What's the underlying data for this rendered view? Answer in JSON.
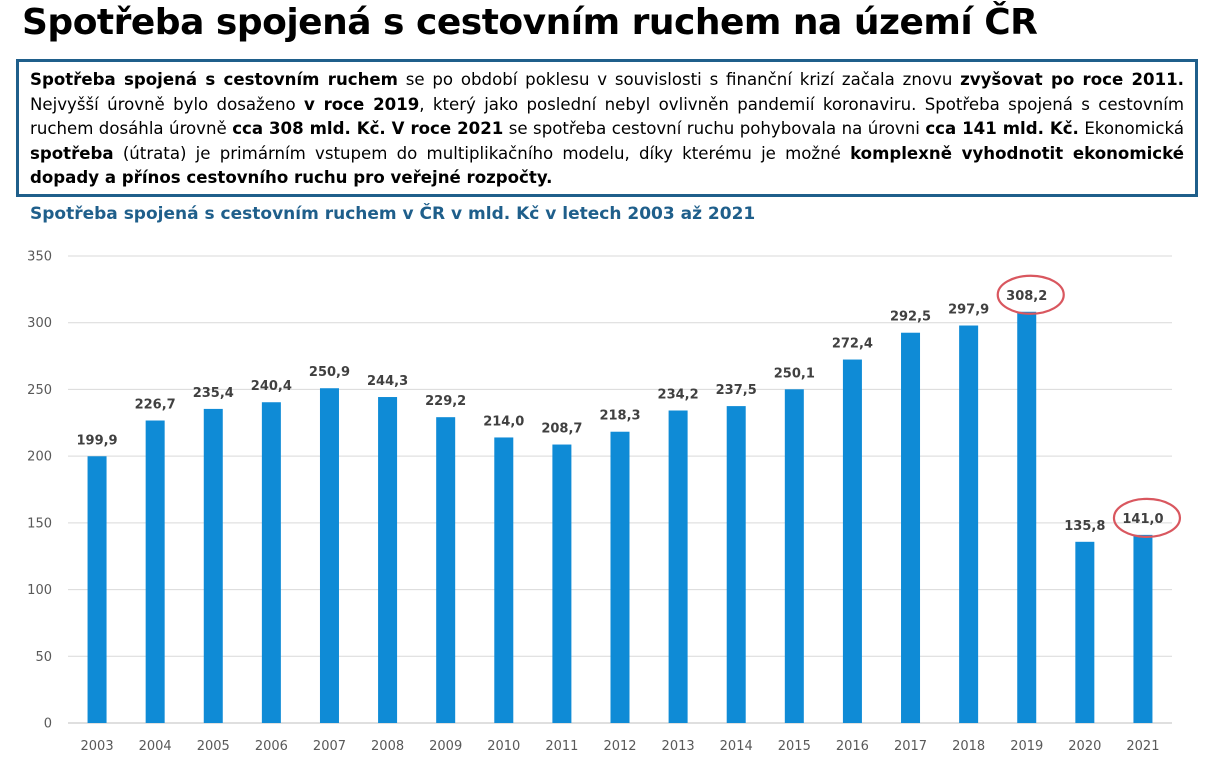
{
  "page_title": "Spotřeba spojená s cestovním ruchem na území ČR",
  "summary": [
    {
      "text": "Spotřeba spojená s cestovním ruchem",
      "bold": true
    },
    {
      "text": " se po období poklesu v souvislosti s finanční krizí začala znovu ",
      "bold": false
    },
    {
      "text": "zvyšovat po roce 2011.",
      "bold": true
    },
    {
      "text": " Nejvyšší úrovně bylo dosaženo ",
      "bold": false
    },
    {
      "text": "v roce 2019",
      "bold": true
    },
    {
      "text": ", který jako poslední nebyl ovlivněn pandemií koronaviru. Spotřeba spojená s cestovním ruchem dosáhla úrovně ",
      "bold": false
    },
    {
      "text": "cca 308 mld. Kč. V roce 2021",
      "bold": true
    },
    {
      "text": " se spotřeba cestovní ruchu pohybovala na úrovni ",
      "bold": false
    },
    {
      "text": "cca 141 mld. Kč.",
      "bold": true
    },
    {
      "text": " Ekonomická ",
      "bold": false
    },
    {
      "text": "spotřeba",
      "bold": true
    },
    {
      "text": " (útrata) je primárním vstupem do multiplikačního modelu, díky kterému je možné ",
      "bold": false
    },
    {
      "text": "komplexně vyhodnotit ekonomické dopady a přínos cestovního ruchu pro veřejné rozpočty.",
      "bold": true
    }
  ],
  "chart_data": {
    "type": "bar",
    "title": "Spotřeba spojená s cestovním ruchem v ČR v mld. Kč v letech 2003 až 2021",
    "categories": [
      "2003",
      "2004",
      "2005",
      "2006",
      "2007",
      "2008",
      "2009",
      "2010",
      "2011",
      "2012",
      "2013",
      "2014",
      "2015",
      "2016",
      "2017",
      "2018",
      "2019",
      "2020",
      "2021"
    ],
    "values": [
      199.9,
      226.7,
      235.4,
      240.4,
      250.9,
      244.3,
      229.2,
      214.0,
      208.7,
      218.3,
      234.2,
      237.5,
      250.1,
      272.4,
      292.5,
      297.9,
      308.2,
      135.8,
      141.0
    ],
    "labels": [
      "199,9",
      "226,7",
      "235,4",
      "240,4",
      "250,9",
      "244,3",
      "229,2",
      "214,0",
      "208,7",
      "218,3",
      "234,2",
      "237,5",
      "250,1",
      "272,4",
      "292,5",
      "297,9",
      "308,2",
      "135,8",
      "141,0"
    ],
    "ylim": [
      0,
      350
    ],
    "yticks": [
      "0",
      "50",
      "100",
      "150",
      "200",
      "250",
      "300",
      "350"
    ],
    "grid": true,
    "highlighted": [
      "2019",
      "2021"
    ],
    "colors": {
      "bar": "#0f8bd6",
      "grid": "#d9d9d9",
      "highlight": "#d9575f"
    }
  }
}
